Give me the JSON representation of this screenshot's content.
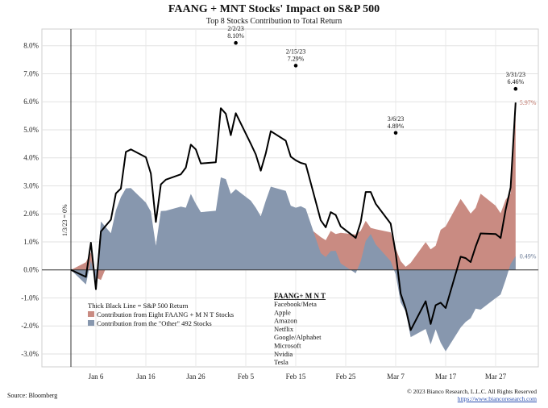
{
  "chart_data": {
    "type": "area",
    "title": "FAANG + MNT Stocks' Impact on S&P 500",
    "subtitle": "Top 8 Stocks Contribution to Total Return",
    "ylim": [
      -3.5,
      8.5
    ],
    "y_ticks": [
      "8.0%",
      "7.0%",
      "6.0%",
      "5.0%",
      "4.0%",
      "3.0%",
      "2.0%",
      "1.0%",
      "0.0%",
      "-1.0%",
      "-2.0%",
      "-3.0%"
    ],
    "x_ticks": [
      "Jan 6",
      "Jan 16",
      "Jan 26",
      "Feb 5",
      "Feb 15",
      "Feb 25",
      "Mar 7",
      "Mar 17",
      "Mar 27"
    ],
    "x_tick_day_index": [
      5,
      15,
      25,
      35,
      45,
      55,
      65,
      75,
      85
    ],
    "colors": {
      "faang": "#c98b82",
      "other": "#8797ae",
      "sp500": "#000000",
      "end_faang_label": "#c07468",
      "end_other_label": "#6a7b96"
    },
    "series": [
      {
        "name": "Contribution from Eight FAANG + M N T Stocks",
        "x": [
          0,
          3,
          4,
          5,
          6,
          8,
          9,
          10,
          11,
          12,
          15,
          16,
          17,
          18,
          19,
          22,
          23,
          24,
          25,
          26,
          29,
          30,
          31,
          32,
          33,
          36,
          37,
          38,
          39,
          40,
          43,
          44,
          45,
          46,
          47,
          50,
          51,
          52,
          53,
          54,
          57,
          58,
          59,
          60,
          61,
          64,
          65,
          66,
          67,
          68,
          71,
          72,
          73,
          74,
          75,
          78,
          79,
          80,
          81,
          82,
          85,
          86,
          87,
          88,
          89
        ],
        "values": [
          0,
          0.27,
          0.63,
          -0.27,
          -0.36,
          0.49,
          0.61,
          0.3,
          1.3,
          1.38,
          1.62,
          1.36,
          0.85,
          0.95,
          1.11,
          1.15,
          1.43,
          1.76,
          1.94,
          1.74,
          1.73,
          2.47,
          2.33,
          2.1,
          2.71,
          2.03,
          1.9,
          1.63,
          1.69,
          1.98,
          1.79,
          1.75,
          1.69,
          1.55,
          1.59,
          1.17,
          1.06,
          1.39,
          1.28,
          1.32,
          1.26,
          1.4,
          1.75,
          1.5,
          1.45,
          1.34,
          0.76,
          0.31,
          0.11,
          0.25,
          0.99,
          0.73,
          0.86,
          1.43,
          1.55,
          2.53,
          2.28,
          2.01,
          2.21,
          2.72,
          2.29,
          2.02,
          2.5,
          2.73,
          5.48
        ]
      },
      {
        "name": "Contribution from the \"Other\" 492 Stocks",
        "x": [
          0,
          3,
          4,
          5,
          6,
          8,
          9,
          10,
          11,
          12,
          15,
          16,
          17,
          18,
          19,
          22,
          23,
          24,
          25,
          26,
          29,
          30,
          31,
          32,
          33,
          36,
          37,
          38,
          39,
          40,
          43,
          44,
          45,
          46,
          47,
          50,
          51,
          52,
          53,
          54,
          57,
          58,
          59,
          60,
          61,
          64,
          65,
          66,
          67,
          68,
          71,
          72,
          73,
          74,
          75,
          78,
          79,
          80,
          81,
          82,
          85,
          86,
          87,
          88,
          89
        ],
        "values": [
          0,
          -0.52,
          0.34,
          -0.42,
          1.73,
          1.31,
          2.12,
          2.6,
          2.91,
          2.92,
          2.4,
          2.08,
          0.86,
          2.1,
          2.11,
          2.26,
          2.22,
          2.71,
          2.36,
          2.06,
          2.11,
          3.3,
          3.24,
          2.71,
          2.88,
          2.47,
          2.22,
          1.91,
          2.47,
          2.97,
          2.82,
          2.29,
          2.22,
          2.27,
          2.18,
          0.6,
          0.46,
          0.67,
          0.68,
          0.23,
          -0.12,
          0.3,
          1.03,
          1.28,
          0.91,
          0.31,
          -0.16,
          -1.16,
          -1.49,
          -2.4,
          -2.11,
          -2.66,
          -2.12,
          -2.6,
          -2.91,
          -2.06,
          -1.86,
          -1.73,
          -1.38,
          -1.42,
          -1.01,
          -0.88,
          -0.36,
          0.21,
          0.49
        ]
      },
      {
        "name": "S&P 500 Return",
        "x": [
          0,
          3,
          4,
          5,
          6,
          8,
          9,
          10,
          11,
          12,
          15,
          16,
          17,
          18,
          19,
          22,
          23,
          24,
          25,
          26,
          29,
          30,
          31,
          32,
          33,
          36,
          37,
          38,
          39,
          40,
          43,
          44,
          45,
          46,
          47,
          50,
          51,
          52,
          53,
          54,
          57,
          58,
          59,
          60,
          61,
          64,
          65,
          66,
          67,
          68,
          71,
          72,
          73,
          74,
          75,
          78,
          79,
          80,
          81,
          82,
          85,
          86,
          87,
          88,
          89
        ],
        "values": [
          0,
          -0.25,
          0.97,
          -0.69,
          1.37,
          1.79,
          2.73,
          2.9,
          4.21,
          4.3,
          4.02,
          3.44,
          1.71,
          3.05,
          3.22,
          3.41,
          3.65,
          4.47,
          4.3,
          3.8,
          3.84,
          5.77,
          5.57,
          4.81,
          5.59,
          4.5,
          4.12,
          3.54,
          4.16,
          4.95,
          4.61,
          4.04,
          3.91,
          3.82,
          3.77,
          1.77,
          1.52,
          2.06,
          1.96,
          1.55,
          1.14,
          1.7,
          2.78,
          2.78,
          2.36,
          1.65,
          0.6,
          -0.85,
          -1.38,
          -2.15,
          -1.12,
          -1.93,
          -1.26,
          -1.17,
          -1.36,
          0.47,
          0.42,
          0.28,
          0.83,
          1.3,
          1.28,
          1.14,
          2.14,
          2.94,
          5.97
        ]
      }
    ],
    "legend": {
      "items": [
        "Thick Black Line = S&P 500 Return",
        "Contribution from Eight FAANG + M N T Stocks",
        "Contribution from the \"Other\" 492 Stocks"
      ],
      "heading": "FAANG+ M N T",
      "companies": [
        "Facebook/Meta",
        "Apple",
        "Amazon",
        "Netflix",
        "Google/Alphabet",
        "Microsoft",
        "Nvidia",
        "Tesla"
      ]
    },
    "annotations": [
      {
        "text": "1/3/23 = 0%"
      },
      {
        "date": "2/2/23",
        "value": "8.10%"
      },
      {
        "date": "2/15/23",
        "value": "7.29%"
      },
      {
        "date": "3/6/23",
        "value": "4.89%"
      },
      {
        "date": "3/31/23",
        "value": "6.46%"
      },
      {
        "text": "5.97%"
      },
      {
        "text": "0.49%"
      }
    ]
  },
  "footer": {
    "source": "Source: Bloomberg",
    "copyright": "© 2023 Bianco Research, L.L.C. All Rights Reserved",
    "url": "https://www.biancoresearch.com"
  }
}
